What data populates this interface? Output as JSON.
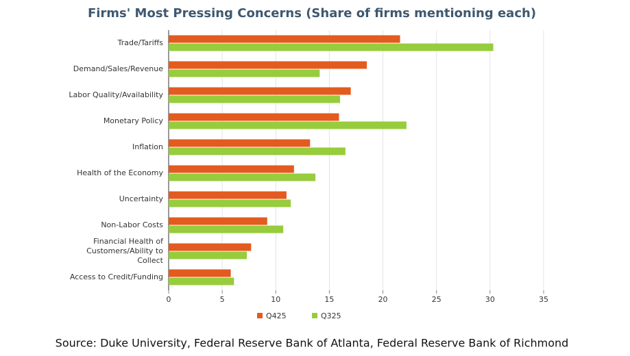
{
  "chart_data": {
    "type": "bar",
    "orientation": "horizontal",
    "title": "Firms' Most Pressing Concerns (Share of firms mentioning each)",
    "categories": [
      "Trade/Tariffs",
      "Demand/Sales/Revenue",
      "Labor Quality/Availability",
      "Monetary Policy",
      "Inflation",
      "Health of the Economy",
      "Uncertainty",
      "Non-Labor Costs",
      "Financial Health of Customers/Ability to Collect",
      "Access to Credit/Funding"
    ],
    "series": [
      {
        "name": "Q425",
        "color": "#e35b1e",
        "values": [
          21.6,
          18.5,
          17.0,
          15.9,
          13.2,
          11.7,
          11.0,
          9.2,
          7.7,
          5.8
        ]
      },
      {
        "name": "Q325",
        "color": "#97cc3d",
        "values": [
          30.3,
          14.1,
          16.0,
          22.2,
          16.5,
          13.7,
          11.4,
          10.7,
          7.3,
          6.1
        ]
      }
    ],
    "xlim": [
      0,
      35
    ],
    "xticks": [
      0,
      5,
      10,
      15,
      20,
      25,
      30,
      35
    ],
    "grid": true,
    "legend": "bottom",
    "source": "Source: Duke University, Federal Reserve Bank of Atlanta, Federal Reserve Bank of Richmond"
  }
}
